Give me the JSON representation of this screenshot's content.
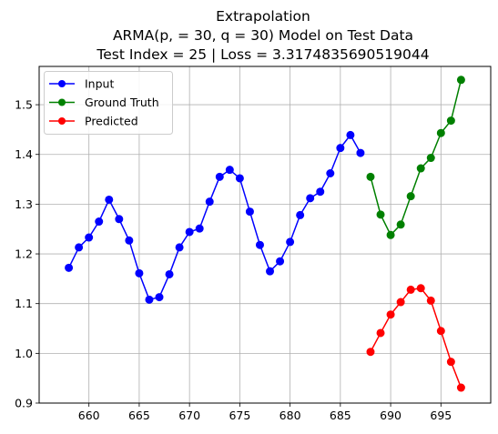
{
  "chart_data": {
    "type": "line",
    "title": [
      "Extrapolation",
      "ARMA(p, = 30, q = 30) Model on Test Data",
      "Test Index = 25 | Loss = 3.3174835690519044"
    ],
    "xlabel": "",
    "ylabel": "",
    "xlim": [
      655.05,
      699.95
    ],
    "ylim": [
      0.9,
      1.577
    ],
    "xticks": [
      660,
      665,
      670,
      675,
      680,
      685,
      690,
      695
    ],
    "yticks": [
      0.9,
      1.0,
      1.1,
      1.2,
      1.3,
      1.4,
      1.5
    ],
    "xtick_labels": [
      "660",
      "665",
      "670",
      "675",
      "680",
      "685",
      "690",
      "695"
    ],
    "ytick_labels": [
      "0.9",
      "1.0",
      "1.1",
      "1.2",
      "1.3",
      "1.4",
      "1.5"
    ],
    "grid": true,
    "legend_position": "top-left",
    "series": [
      {
        "name": "Input",
        "color": "#0000ff",
        "x": [
          658,
          659,
          660,
          661,
          662,
          663,
          664,
          665,
          666,
          667,
          668,
          669,
          670,
          671,
          672,
          673,
          674,
          675,
          676,
          677,
          678,
          679,
          680,
          681,
          682,
          683,
          684,
          685,
          686,
          687
        ],
        "y": [
          1.172,
          1.213,
          1.233,
          1.265,
          1.309,
          1.27,
          1.227,
          1.161,
          1.108,
          1.113,
          1.159,
          1.213,
          1.244,
          1.251,
          1.305,
          1.355,
          1.369,
          1.352,
          1.285,
          1.218,
          1.165,
          1.185,
          1.224,
          1.278,
          1.312,
          1.325,
          1.362,
          1.413,
          1.439,
          1.403
        ]
      },
      {
        "name": "Ground Truth",
        "color": "#008000",
        "x": [
          688,
          689,
          690,
          691,
          692,
          693,
          694,
          695,
          696,
          697
        ],
        "y": [
          1.355,
          1.279,
          1.238,
          1.259,
          1.316,
          1.372,
          1.393,
          1.443,
          1.468,
          1.55
        ]
      },
      {
        "name": "Predicted",
        "color": "#ff0000",
        "x": [
          688,
          689,
          690,
          691,
          692,
          693,
          694,
          695,
          696,
          697
        ],
        "y": [
          1.003,
          1.041,
          1.078,
          1.103,
          1.128,
          1.131,
          1.106,
          1.045,
          0.983,
          0.931
        ]
      }
    ]
  }
}
